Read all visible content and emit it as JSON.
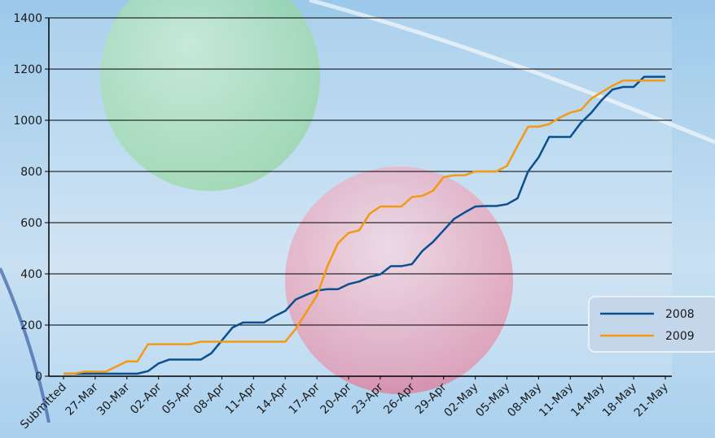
{
  "chart_data": {
    "type": "line",
    "categories": [
      "Submitted",
      null,
      null,
      "27-Mar",
      null,
      null,
      "30-Mar",
      null,
      null,
      "02-Apr",
      null,
      null,
      "05-Apr",
      null,
      null,
      "08-Apr",
      null,
      null,
      "11-Apr",
      null,
      null,
      "14-Apr",
      null,
      null,
      "17-Apr",
      null,
      null,
      "20-Apr",
      null,
      null,
      "23-Apr",
      null,
      null,
      "26-Apr",
      null,
      null,
      "29-Apr",
      null,
      null,
      "02-May",
      null,
      null,
      "05-May",
      null,
      null,
      "08-May",
      null,
      null,
      "11-May",
      null,
      null,
      "14-May",
      null,
      null,
      "18-May",
      null,
      null,
      "21-May"
    ],
    "series": [
      {
        "name": "2008",
        "color": "#0a4f8f",
        "values": [
          10,
          10,
          10,
          10,
          10,
          10,
          10,
          10,
          20,
          50,
          65,
          65,
          65,
          65,
          90,
          140,
          190,
          210,
          210,
          210,
          235,
          255,
          300,
          318,
          335,
          340,
          340,
          360,
          370,
          388,
          398,
          430,
          430,
          438,
          490,
          525,
          570,
          615,
          640,
          663,
          665,
          665,
          672,
          695,
          800,
          855,
          935,
          935,
          935,
          990,
          1030,
          1080,
          1120,
          1130,
          1130,
          1170,
          1170,
          1170
        ]
      },
      {
        "name": "2009",
        "color": "#f39a12",
        "values": [
          10,
          10,
          18,
          18,
          18,
          38,
          58,
          58,
          125,
          125,
          125,
          125,
          125,
          135,
          135,
          135,
          135,
          135,
          135,
          135,
          135,
          135,
          185,
          250,
          315,
          430,
          520,
          560,
          570,
          635,
          663,
          663,
          663,
          700,
          705,
          725,
          778,
          785,
          785,
          800,
          800,
          800,
          822,
          900,
          975,
          975,
          985,
          1010,
          1030,
          1040,
          1085,
          1110,
          1135,
          1155,
          1155,
          1155,
          1155,
          1155
        ]
      }
    ],
    "ylim": [
      0,
      1400
    ],
    "yticks": [
      0,
      200,
      400,
      600,
      800,
      1000,
      1200,
      1400
    ],
    "grid": true,
    "legend": "right"
  }
}
